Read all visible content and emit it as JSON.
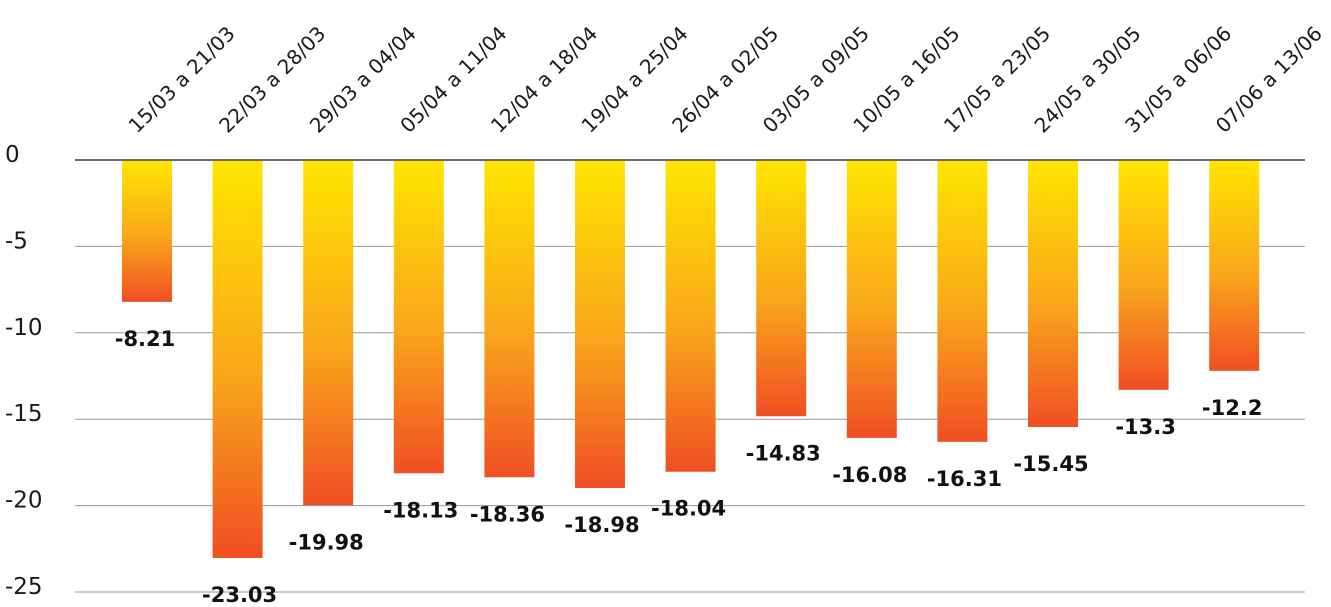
{
  "chart_data": {
    "type": "bar",
    "title": "",
    "xlabel": "",
    "ylabel": "",
    "categories": [
      "15/03 a 21/03",
      "22/03 a 28/03",
      "29/03 a 04/04",
      "05/04 a 11/04",
      "12/04 a 18/04",
      "19/04 a 25/04",
      "26/04 a 02/05",
      "03/05 a 09/05",
      "10/05 a 16/05",
      "17/05 a 23/05",
      "24/05 a 30/05",
      "31/05 a 06/06",
      "07/06 a 13/06"
    ],
    "values": [
      -8.21,
      -23.03,
      -19.98,
      -18.13,
      -18.36,
      -18.98,
      -18.04,
      -14.83,
      -16.08,
      -16.31,
      -15.45,
      -13.3,
      -12.2
    ],
    "value_labels": [
      "-8.21",
      "-23.03",
      "-19.98",
      "-18.13",
      "-18.36",
      "-18.98",
      "-18.04",
      "-14.83",
      "-16.08",
      "-16.31",
      "-15.45",
      "-13.3",
      "-12.2"
    ],
    "yticks": [
      0,
      -5,
      -10,
      -15,
      -20,
      -25
    ],
    "ytick_labels": [
      "0",
      "-5",
      "-10",
      "-15",
      "-20",
      "-25"
    ],
    "ylim": [
      -25,
      0
    ],
    "grid": true,
    "legend": "none",
    "colors": {
      "bar_top": "#ffe600",
      "bar_mid": "#f9a51b",
      "bar_bottom": "#f04e23",
      "gridline": "#9a9a9a",
      "zero_line": "#6b6b6b"
    }
  }
}
